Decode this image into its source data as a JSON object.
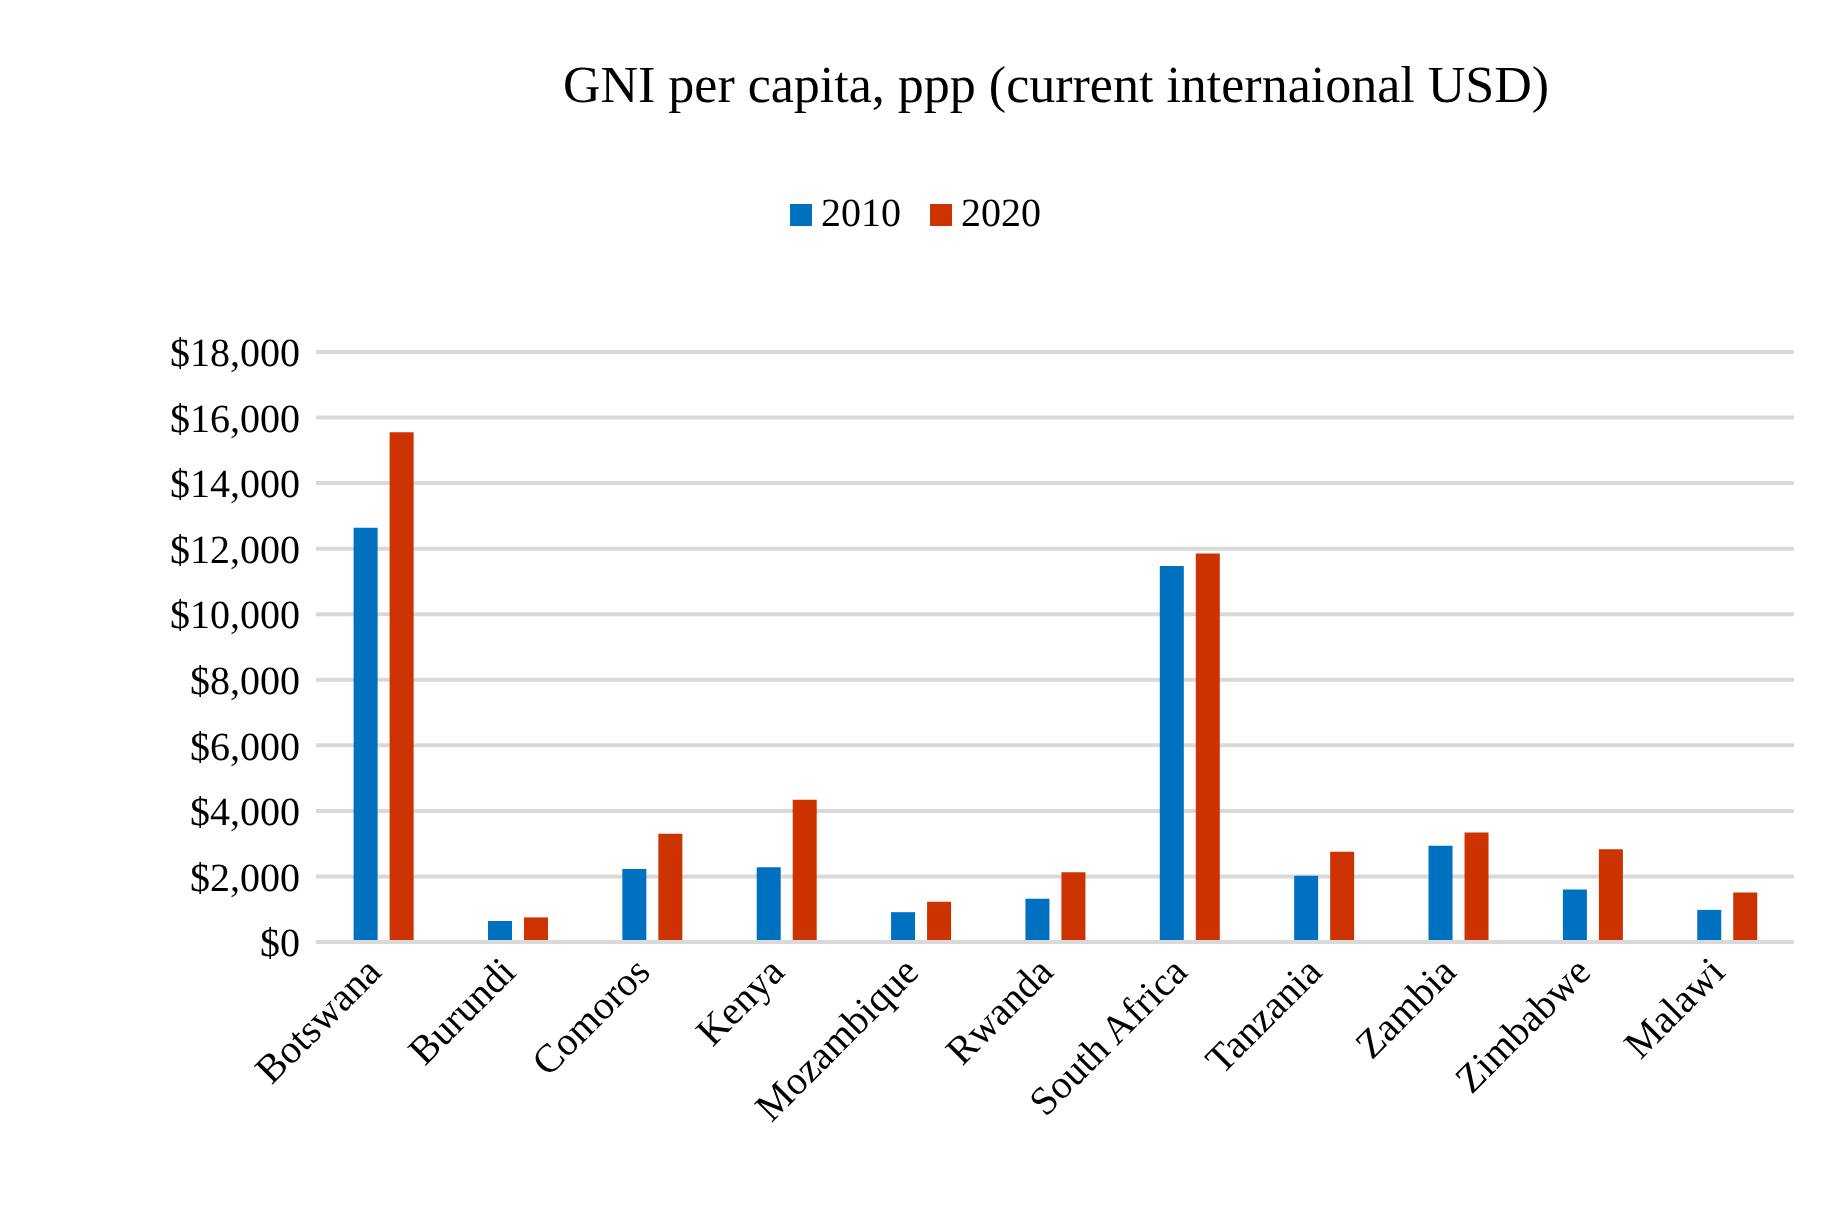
{
  "chart_data": {
    "type": "bar",
    "title": "GNI per capita, ppp (current internaional USD)",
    "categories": [
      "Botswana",
      "Burundi",
      "Comoros",
      "Kenya",
      "Mozambique",
      "Rwanda",
      "South Africa",
      "Tanzania",
      "Zambia",
      "Zimbabwe",
      "Malawi"
    ],
    "series": [
      {
        "name": "2010",
        "color": "#0070c0",
        "values": [
          12640,
          640,
          2230,
          2280,
          910,
          1320,
          11470,
          2020,
          2940,
          1600,
          980
        ]
      },
      {
        "name": "2020",
        "color": "#cc3300",
        "values": [
          15550,
          750,
          3300,
          4340,
          1230,
          2130,
          11850,
          2750,
          3340,
          2830,
          1510
        ]
      }
    ],
    "ylim": [
      0,
      18000
    ],
    "yticks": [
      {
        "value": 0,
        "label": "$0"
      },
      {
        "value": 2000,
        "label": "$2,000"
      },
      {
        "value": 4000,
        "label": "$4,000"
      },
      {
        "value": 6000,
        "label": "$6,000"
      },
      {
        "value": 8000,
        "label": "$8,000"
      },
      {
        "value": 10000,
        "label": "$10,000"
      },
      {
        "value": 12000,
        "label": "$12,000"
      },
      {
        "value": 14000,
        "label": "$14,000"
      },
      {
        "value": 16000,
        "label": "$16,000"
      },
      {
        "value": 18000,
        "label": "$18,000"
      }
    ],
    "grid": "y",
    "legend": "top"
  }
}
